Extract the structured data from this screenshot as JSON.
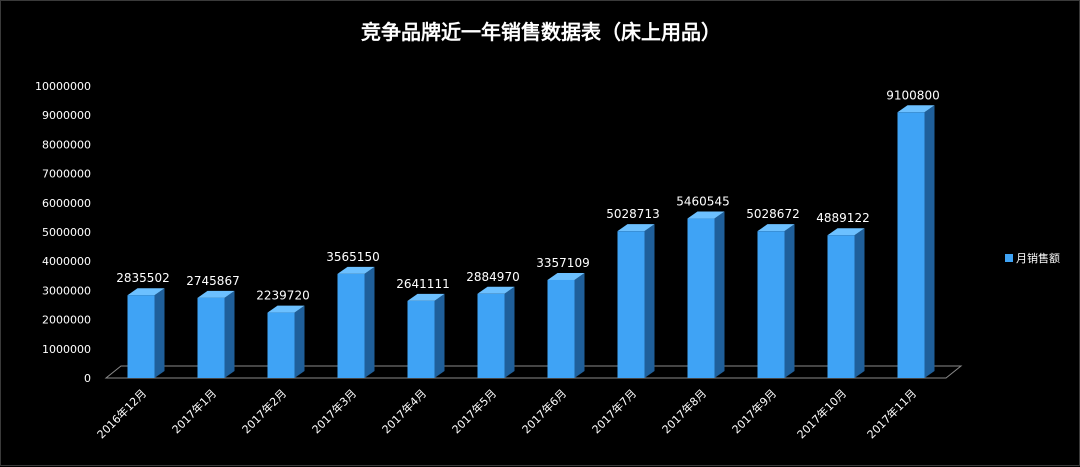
{
  "chart_data": {
    "type": "bar",
    "title": "竞争品牌近一年销售数据表（床上用品）",
    "categories": [
      "2016年12月",
      "2017年1月",
      "2017年2月",
      "2017年3月",
      "2017年4月",
      "2017年5月",
      "2017年6月",
      "2017年7月",
      "2017年8月",
      "2017年9月",
      "2017年10月",
      "2017年11月"
    ],
    "series": [
      {
        "name": "月销售额",
        "values": [
          2835502,
          2745867,
          2239720,
          3565150,
          2641111,
          2884970,
          3357109,
          5028713,
          5460545,
          5028672,
          4889122,
          9100800
        ]
      }
    ],
    "ylim": [
      0,
      10000000
    ],
    "yticks": [
      "0",
      "1000000",
      "2000000",
      "3000000",
      "4000000",
      "5000000",
      "6000000",
      "7000000",
      "8000000",
      "9000000",
      "10000000"
    ],
    "grid": false,
    "legend_position": "right",
    "colors": {
      "bar_front": "#3fa3f5",
      "bar_side": "#1f5f9a",
      "bar_top": "#6cc0ff",
      "text": "#ffffff",
      "background": "#000000"
    }
  }
}
